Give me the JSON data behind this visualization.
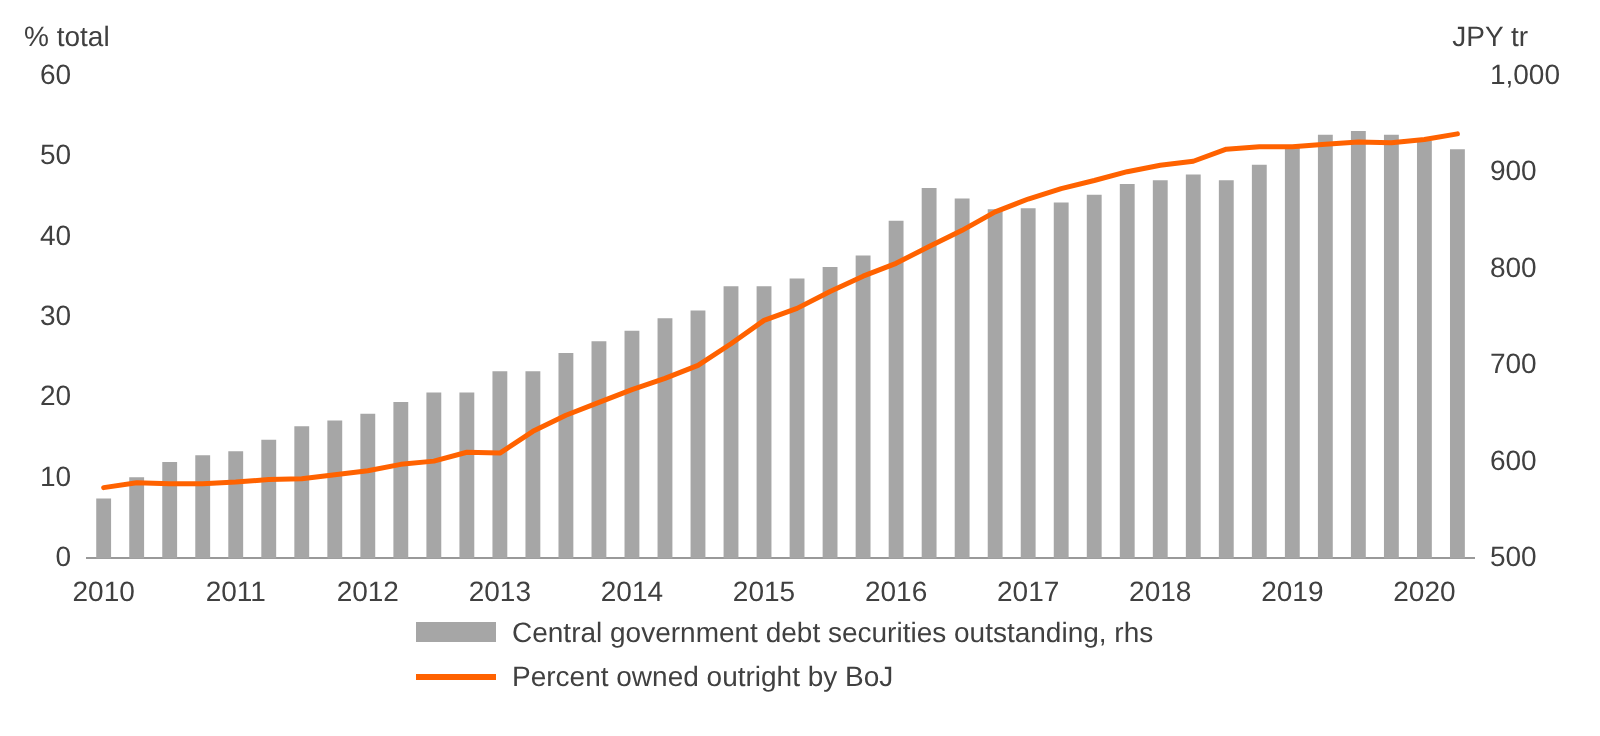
{
  "chart_data": {
    "type": "bar",
    "ylabel": "% total",
    "y2label": "JPY tr",
    "categories": [
      "2010",
      null,
      null,
      null,
      "2011",
      null,
      null,
      null,
      "2012",
      null,
      null,
      null,
      "2013",
      null,
      null,
      null,
      "2014",
      null,
      null,
      null,
      "2015",
      null,
      null,
      null,
      "2016",
      null,
      null,
      null,
      "2017",
      null,
      null,
      null,
      "2018",
      null,
      null,
      null,
      "2019",
      null,
      null,
      null,
      "2020",
      null
    ],
    "series": [
      {
        "name": "Central government debt securities outstanding, rhs",
        "axis": "y2",
        "color": "#a6a6a6",
        "values": [
          562,
          584,
          600,
          607,
          611,
          623,
          637,
          643,
          650,
          662,
          672,
          672,
          694,
          694,
          713,
          725,
          736,
          749,
          757,
          782,
          782,
          790,
          802,
          814,
          850,
          884,
          873,
          862,
          863,
          869,
          877,
          888,
          892,
          898,
          892,
          908,
          926,
          939,
          943,
          939,
          933,
          924
        ]
      },
      {
        "name": "Percent owned outright by BoJ",
        "type": "line",
        "color": "#ff6200",
        "values": [
          8.8,
          9.4,
          9.3,
          9.3,
          9.5,
          9.8,
          9.9,
          10.4,
          10.9,
          11.7,
          12.1,
          13.2,
          13.1,
          15.8,
          17.8,
          19.4,
          21,
          22.4,
          24,
          26.7,
          29.6,
          31.1,
          33.2,
          35.1,
          36.7,
          38.8,
          40.8,
          43.1,
          44.7,
          46,
          47,
          48.1,
          48.9,
          49.4,
          50.9,
          51.2,
          51.2,
          51.5,
          51.8,
          51.7,
          52.1,
          52.8
        ]
      }
    ],
    "ylim": [
      0,
      60
    ],
    "yticks": [
      0,
      10,
      20,
      30,
      40,
      50,
      60
    ],
    "y2lim": [
      500,
      1000
    ],
    "y2ticks": [
      500,
      600,
      700,
      800,
      900,
      {
        "value": 1000,
        "label": "1,000"
      }
    ],
    "grid": false,
    "legend": "bottom"
  }
}
